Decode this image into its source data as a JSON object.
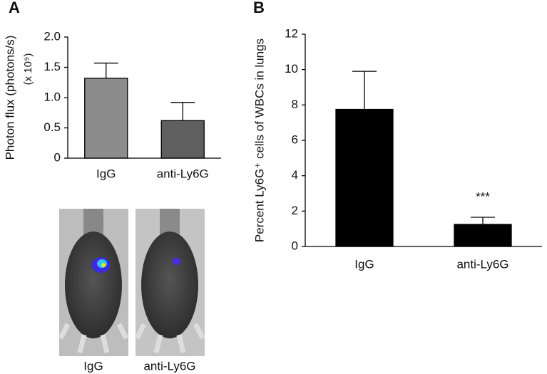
{
  "chart_data": [
    {
      "type": "bar",
      "panel": "A",
      "ylabel": "Photon flux (photons/s)",
      "ylabel2": "(x 10⁹)",
      "categories": [
        "IgG",
        "anti-Ly6G"
      ],
      "values": [
        1.32,
        0.62
      ],
      "errors": [
        0.25,
        0.3
      ],
      "colors": [
        "#8c8c8c",
        "#5f5f5f"
      ],
      "ylim": [
        0,
        2
      ],
      "yticks": [
        0,
        0.5,
        {
          "value": 1,
          "label": "1.0"
        },
        1.5,
        {
          "value": 2,
          "label": "2.0"
        }
      ]
    },
    {
      "type": "bar",
      "panel": "B",
      "ylabel": "Percent Ly6G⁺ cells of WBCs in lungs",
      "categories": [
        "IgG",
        "anti-Ly6G"
      ],
      "values": [
        7.75,
        1.25
      ],
      "errors": [
        2.15,
        0.4
      ],
      "colors": [
        "#000000",
        "#000000"
      ],
      "annotation": "***",
      "ylim": [
        0,
        12
      ],
      "yticks": [
        0,
        2,
        4,
        6,
        8,
        10,
        12
      ]
    }
  ],
  "image_labels": [
    "IgG",
    "anti-Ly6G"
  ]
}
